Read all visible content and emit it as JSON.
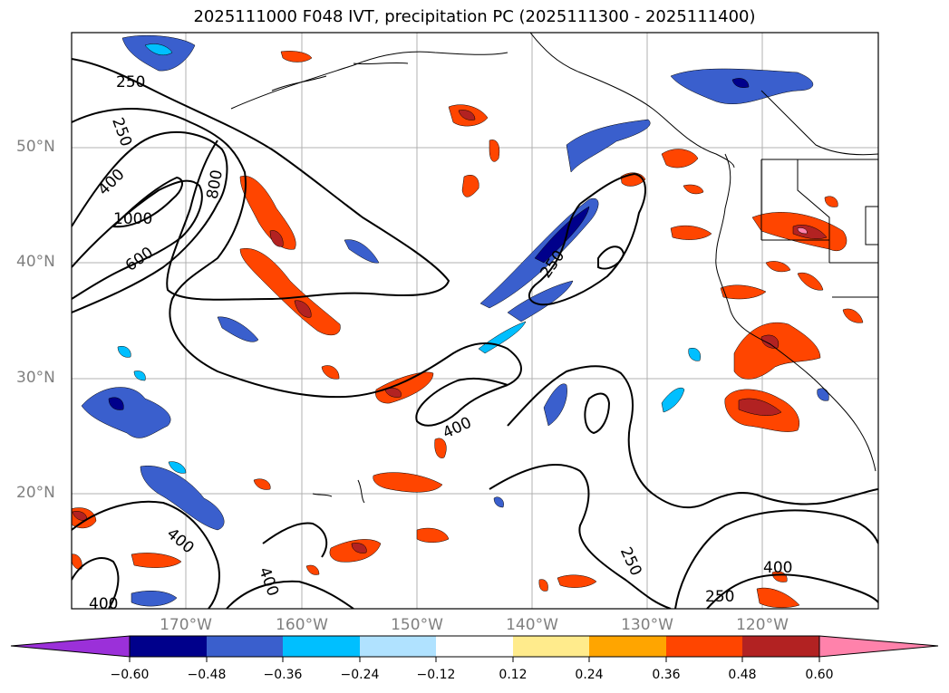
{
  "title": "2025111000 F048 IVT, precipitation PC (2025111300 - 2025111400)",
  "lat_labels": [
    "50°N",
    "40°N",
    "30°N",
    "20°N"
  ],
  "lon_labels": [
    "170°W",
    "160°W",
    "150°W",
    "140°W",
    "130°W",
    "120°W"
  ],
  "contour_labels": {
    "c250_nw": "250",
    "c250_nw2": "250",
    "c400_nw": "400",
    "c800": "800",
    "c1000": "1000",
    "c600": "600",
    "c250_center": "250",
    "c400_center": "400",
    "c400_sw": "400",
    "c400_sw2": "400",
    "c400_bl": "400",
    "c250_se": "250",
    "c400_se": "400",
    "c250_bot": "250"
  },
  "colorbar": {
    "ticks": [
      "−0.60",
      "−0.48",
      "−0.36",
      "−0.24",
      "−0.12",
      "0.12",
      "0.24",
      "0.36",
      "0.48",
      "0.60"
    ],
    "colors": {
      "under": "#9b30d9",
      "neg_060_048": "#00008b",
      "neg_048_036": "#3a5fcd",
      "neg_036_024": "#00bfff",
      "neg_024_012": "#b0e2ff",
      "neutral": "#ffffff",
      "pos_012_024": "#ffeb8c",
      "pos_024_036": "#ffa500",
      "pos_036_048": "#ff4500",
      "pos_048_060": "#b22222",
      "over": "#ff82ab"
    }
  }
}
